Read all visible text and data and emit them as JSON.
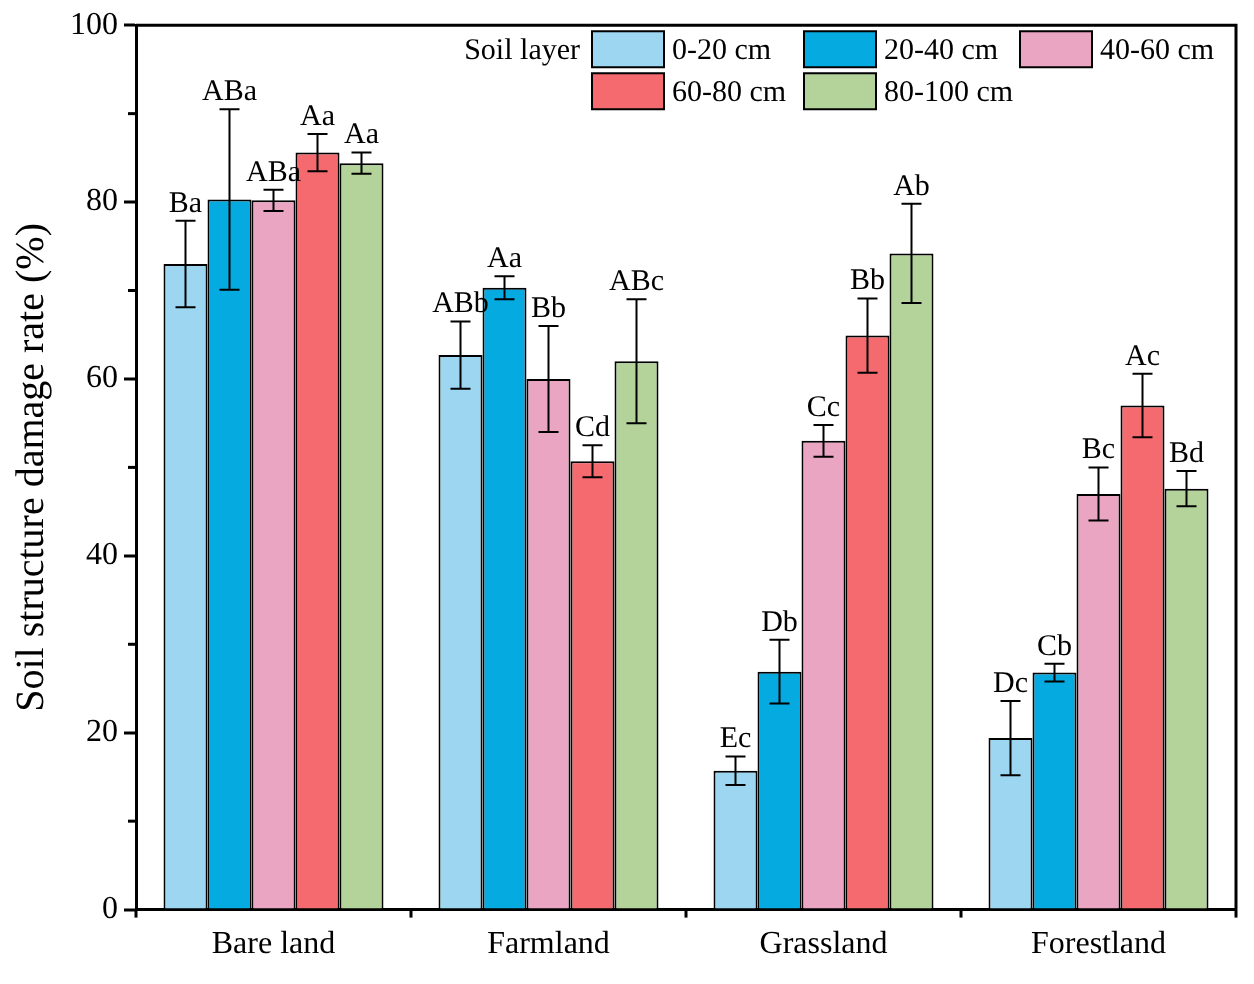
{
  "chart_data": {
    "type": "bar",
    "ylabel": "Soil structure damage rate (%)",
    "legend_title": "Soil layer",
    "legend": "top right",
    "categories": [
      "Bare land",
      "Farmland",
      "Grassland",
      "Forestland"
    ],
    "ylim": [
      0,
      100
    ],
    "yticks": [
      0,
      20,
      40,
      60,
      80,
      100
    ],
    "grid": false,
    "series": [
      {
        "name": "0-20 cm",
        "color": "#9dd6f0",
        "values": [
          73,
          62.7,
          15.7,
          19.4
        ],
        "errors": [
          4.9,
          3.8,
          1.6,
          4.2
        ],
        "value_labels": [
          "Ba",
          "ABb",
          "Ec",
          "Dc"
        ]
      },
      {
        "name": "20-40 cm",
        "color": "#05abe0",
        "values": [
          80.3,
          70.3,
          26.9,
          26.8
        ],
        "errors": [
          10.2,
          1.3,
          3.6,
          1
        ],
        "value_labels": [
          "ABa",
          "Aa",
          "Db",
          "Cb"
        ]
      },
      {
        "name": "40-60 cm",
        "color": "#e9a5c2",
        "values": [
          80.2,
          60,
          53,
          47
        ],
        "errors": [
          1.2,
          6,
          1.8,
          3
        ],
        "value_labels": [
          "ABa",
          "Bb",
          "Cc",
          "Bc"
        ]
      },
      {
        "name": "60-80 cm",
        "color": "#f46a6e",
        "values": [
          85.6,
          50.7,
          64.9,
          57
        ],
        "errors": [
          2.1,
          1.8,
          4.2,
          3.6
        ],
        "value_labels": [
          "Aa",
          "Cd",
          "Bb",
          "Ac"
        ]
      },
      {
        "name": "80-100 cm",
        "color": "#b3d39b",
        "values": [
          84.4,
          62,
          74.2,
          47.6
        ],
        "errors": [
          1.2,
          7,
          5.6,
          2
        ],
        "value_labels": [
          "Aa",
          "ABc",
          "Ab",
          "Bd"
        ]
      }
    ]
  }
}
